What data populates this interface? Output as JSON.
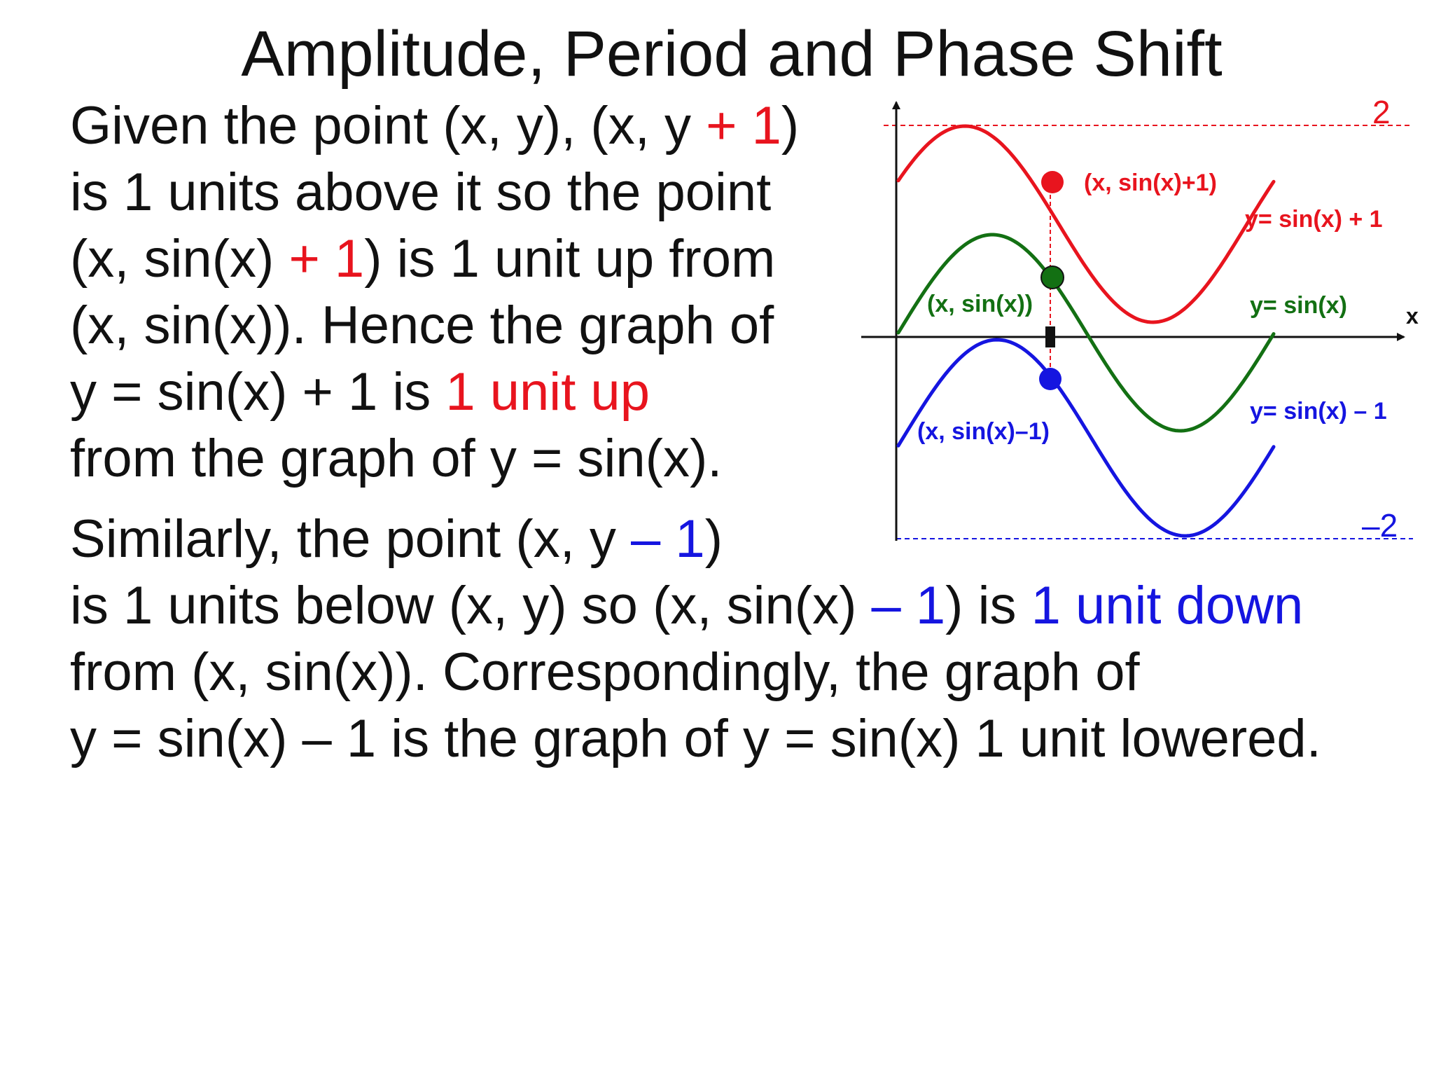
{
  "title": "Amplitude, Period and Phase Shift",
  "paragraph1": {
    "line1": {
      "a": "Given the point (x, y), (x, y ",
      "b": "+ 1",
      "c": ")"
    },
    "line2": "is 1 units above it so the point",
    "line3": {
      "a": "(x, sin(x) ",
      "b": "+ 1",
      "c": ") is 1 unit up from"
    },
    "line4": "(x, sin(x)). Hence the graph of",
    "line5": {
      "a": "y = sin(x) + 1 is ",
      "b": "1 unit up"
    },
    "line6": "from the graph of y = sin(x)."
  },
  "paragraph2": {
    "line1": {
      "a": "Similarly, the point (x, y ",
      "b": "– 1",
      "c": ")"
    },
    "line2": {
      "a": "is 1 units below (x, y) so (x, sin(x) ",
      "b": "– 1",
      "c": ") is ",
      "d": "1 unit down"
    },
    "line3": "from (x, sin(x)). Correspondingly, the graph of",
    "line4": "y = sin(x) – 1 is the graph of y = sin(x) 1 unit lowered."
  },
  "graph": {
    "top_value_label": "2",
    "bottom_value_label": "–2",
    "x_axis_label": "x",
    "curve_labels": {
      "upper": "y= sin(x) + 1",
      "middle": "y= sin(x)",
      "lower": "y= sin(x) – 1"
    },
    "point_labels": {
      "upper": "(x, sin(x)+1)",
      "middle": "(x, sin(x))",
      "lower": "(x, sin(x)–1)"
    },
    "colors": {
      "upper": "#e8141e",
      "middle": "#137013",
      "lower": "#1515e0",
      "axis": "#111111"
    }
  }
}
